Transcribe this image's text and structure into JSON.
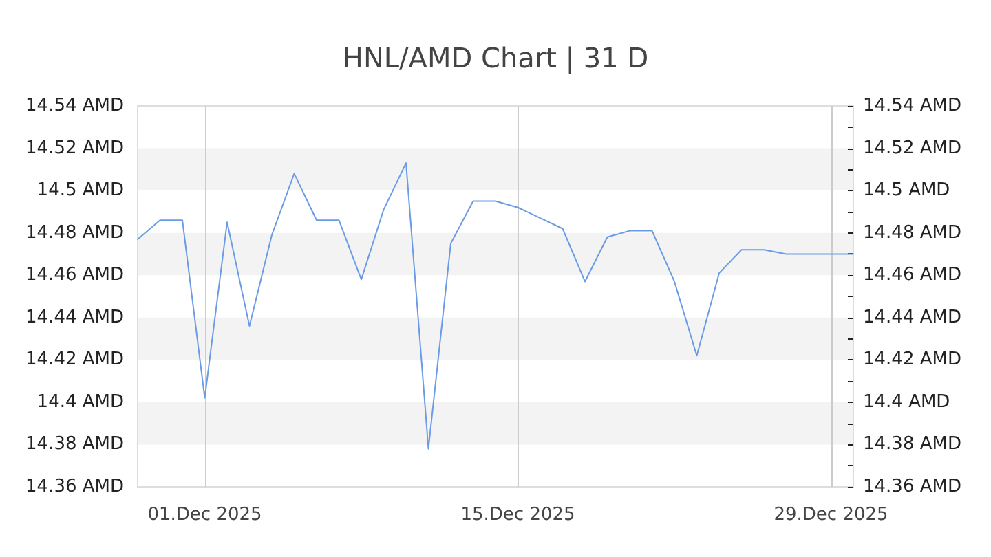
{
  "chart_data": {
    "type": "line",
    "title": "HNL/AMD Chart | 31 D",
    "x": [
      "2025-11-28",
      "2025-11-29",
      "2025-11-30",
      "2025-12-01",
      "2025-12-02",
      "2025-12-03",
      "2025-12-04",
      "2025-12-05",
      "2025-12-06",
      "2025-12-07",
      "2025-12-08",
      "2025-12-09",
      "2025-12-10",
      "2025-12-11",
      "2025-12-12",
      "2025-12-13",
      "2025-12-14",
      "2025-12-15",
      "2025-12-16",
      "2025-12-17",
      "2025-12-18",
      "2025-12-19",
      "2025-12-20",
      "2025-12-21",
      "2025-12-22",
      "2025-12-23",
      "2025-12-24",
      "2025-12-25",
      "2025-12-26",
      "2025-12-27",
      "2025-12-28",
      "2025-12-29",
      "2025-12-30"
    ],
    "values": [
      14.477,
      14.486,
      14.486,
      14.402,
      14.485,
      14.436,
      14.479,
      14.508,
      14.486,
      14.486,
      14.458,
      14.491,
      14.513,
      14.378,
      14.475,
      14.495,
      14.495,
      14.492,
      14.487,
      14.482,
      14.457,
      14.478,
      14.481,
      14.481,
      14.457,
      14.422,
      14.461,
      14.472,
      14.472,
      14.47,
      14.47,
      14.47,
      14.47
    ],
    "color": "#6a9be6",
    "xlim": [
      "2025-11-28",
      "2025-12-30"
    ],
    "xticks": [
      {
        "value": "2025-12-01",
        "label": "01.Dec 2025"
      },
      {
        "value": "2025-12-15",
        "label": "15.Dec 2025"
      },
      {
        "value": "2025-12-29",
        "label": "29.Dec 2025"
      }
    ],
    "ylim": [
      14.36,
      14.54
    ],
    "yticks": [
      {
        "value": 14.36,
        "label": "14.36 AMD"
      },
      {
        "value": 14.38,
        "label": "14.38 AMD"
      },
      {
        "value": 14.4,
        "label": "14.4 AMD"
      },
      {
        "value": 14.42,
        "label": "14.42 AMD"
      },
      {
        "value": 14.44,
        "label": "14.44 AMD"
      },
      {
        "value": 14.46,
        "label": "14.46 AMD"
      },
      {
        "value": 14.48,
        "label": "14.48 AMD"
      },
      {
        "value": 14.5,
        "label": "14.5 AMD"
      },
      {
        "value": 14.52,
        "label": "14.52 AMD"
      },
      {
        "value": 14.54,
        "label": "14.54 AMD"
      }
    ],
    "y2lim": [
      14.36,
      14.54
    ],
    "y2ticks": [
      {
        "value": 14.36,
        "label": "14.36 AMD"
      },
      {
        "value": 14.37,
        "label": null
      },
      {
        "value": 14.38,
        "label": "14.38 AMD"
      },
      {
        "value": 14.39,
        "label": null
      },
      {
        "value": 14.4,
        "label": "14.4 AMD"
      },
      {
        "value": 14.41,
        "label": null
      },
      {
        "value": 14.42,
        "label": "14.42 AMD"
      },
      {
        "value": 14.43,
        "label": null
      },
      {
        "value": 14.44,
        "label": "14.44 AMD"
      },
      {
        "value": 14.45,
        "label": null
      },
      {
        "value": 14.46,
        "label": "14.46 AMD"
      },
      {
        "value": 14.47,
        "label": null
      },
      {
        "value": 14.48,
        "label": "14.48 AMD"
      },
      {
        "value": 14.49,
        "label": null
      },
      {
        "value": 14.5,
        "label": "14.5 AMD"
      },
      {
        "value": 14.51,
        "label": null
      },
      {
        "value": 14.52,
        "label": "14.52 AMD"
      },
      {
        "value": 14.53,
        "label": null
      },
      {
        "value": 14.54,
        "label": "14.54 AMD"
      }
    ],
    "grid": true,
    "marker": "none",
    "line_style": "solid"
  }
}
